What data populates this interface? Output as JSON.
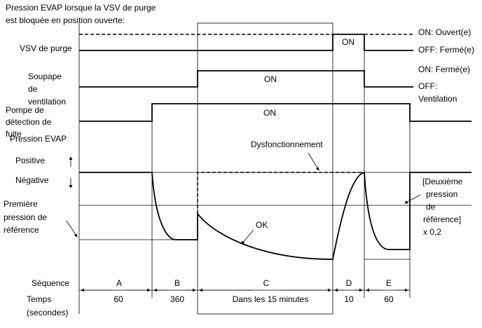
{
  "title": [
    "Pression EVAP lorsque la VSV de purge",
    "est bloquée en position ouverte:"
  ],
  "rows": {
    "vsv": "VSV de purge",
    "soupape": [
      "Soupape",
      "de",
      "ventilation"
    ],
    "pompe": [
      "Pompe de",
      "détection de",
      "fuite"
    ],
    "evap": "Pression EVAP",
    "positive": "Positive",
    "negative": "Négative",
    "premiere": [
      "Première",
      "pression de",
      "référence"
    ]
  },
  "right": {
    "vsv_on": "ON: Ouvert(e)",
    "vsv_off": "OFF: Fermé(e)",
    "soupape_on": "ON: Fermé(e)",
    "soupape_off": [
      "OFF:",
      "Ventilation"
    ],
    "deuxieme": [
      "[Deuxième",
      "pression",
      "de",
      "référence]",
      "x 0,2"
    ]
  },
  "signals": {
    "vsv_on": "ON",
    "soupape_on": "ON",
    "pompe_on": "ON"
  },
  "annotations": {
    "malfunction": "Dysfonctionnement",
    "ok": "OK"
  },
  "sequence": {
    "label": "Séquence",
    "steps": [
      "A",
      "B",
      "C",
      "D",
      "E"
    ]
  },
  "time": {
    "label": [
      "Temps",
      "(secondes)"
    ],
    "values": [
      "60",
      "360",
      "Dans les 15 minutes",
      "10",
      "60"
    ]
  }
}
